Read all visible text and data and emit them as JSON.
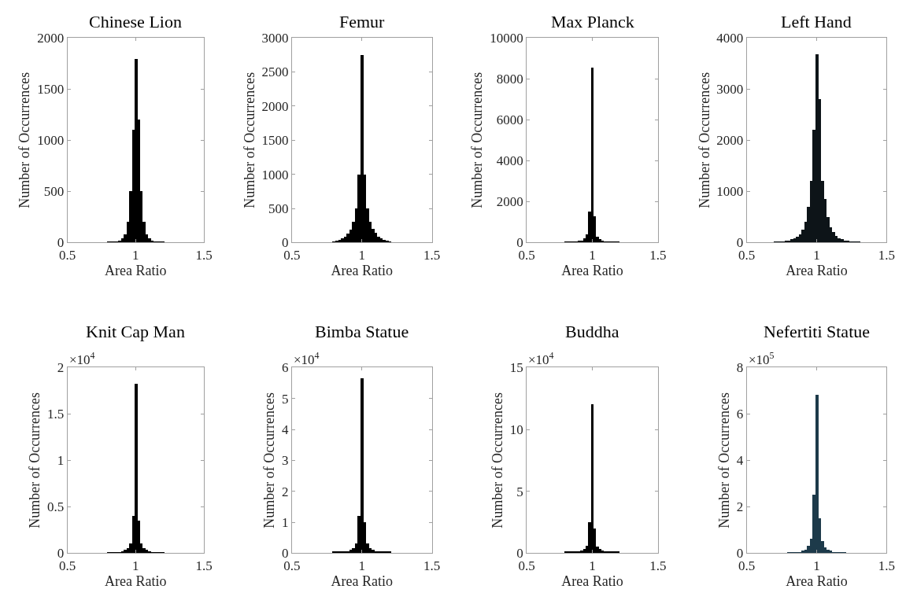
{
  "chart_data": [
    {
      "type": "histogram",
      "title": "Chinese Lion",
      "xlabel": "Area Ratio",
      "ylabel": "Number of Occurrences",
      "color": "#000000",
      "xlim": [
        0.5,
        1.5
      ],
      "xticks": [
        0.5,
        1,
        1.5
      ],
      "ylim": [
        0,
        2000
      ],
      "yticks": [
        0,
        500,
        1000,
        1500,
        2000
      ],
      "bins": [
        0.79,
        0.81,
        0.83,
        0.85,
        0.87,
        0.89,
        0.91,
        0.93,
        0.95,
        0.97,
        0.99,
        1.01,
        1.03,
        1.05,
        1.07,
        1.09,
        1.11,
        1.13,
        1.15,
        1.17,
        1.19,
        1.21
      ],
      "values": [
        10,
        10,
        10,
        10,
        20,
        40,
        80,
        200,
        500,
        1100,
        1790,
        1200,
        500,
        200,
        80,
        40,
        20,
        10,
        10,
        10,
        10
      ]
    },
    {
      "type": "histogram",
      "title": "Femur",
      "xlabel": "Area Ratio",
      "ylabel": "Number of Occurrences",
      "color": "#000000",
      "xlim": [
        0.5,
        1.5
      ],
      "xticks": [
        0.5,
        1,
        1.5
      ],
      "ylim": [
        0,
        3000
      ],
      "yticks": [
        0,
        500,
        1000,
        1500,
        2000,
        2500,
        3000
      ],
      "bins": [
        0.79,
        0.81,
        0.83,
        0.85,
        0.87,
        0.89,
        0.91,
        0.93,
        0.95,
        0.97,
        0.99,
        1.01,
        1.03,
        1.05,
        1.07,
        1.09,
        1.11,
        1.13,
        1.15,
        1.17,
        1.19,
        1.21
      ],
      "values": [
        20,
        30,
        40,
        60,
        90,
        130,
        190,
        300,
        500,
        1000,
        2750,
        1000,
        500,
        300,
        200,
        140,
        90,
        60,
        40,
        30,
        20
      ]
    },
    {
      "type": "histogram",
      "title": "Max Planck",
      "xlabel": "Area Ratio",
      "ylabel": "Number of Occurrences",
      "color": "#000000",
      "xlim": [
        0.5,
        1.5
      ],
      "xticks": [
        0.5,
        1,
        1.5
      ],
      "ylim": [
        0,
        10000
      ],
      "yticks": [
        0,
        2000,
        4000,
        6000,
        8000,
        10000
      ],
      "bins": [
        0.79,
        0.81,
        0.83,
        0.85,
        0.87,
        0.89,
        0.91,
        0.93,
        0.95,
        0.97,
        0.99,
        1.01,
        1.03,
        1.05,
        1.07,
        1.09,
        1.11,
        1.13,
        1.15,
        1.17,
        1.19,
        1.21
      ],
      "values": [
        50,
        50,
        50,
        50,
        50,
        100,
        100,
        200,
        400,
        1500,
        8550,
        1300,
        300,
        150,
        100,
        50,
        50,
        50,
        50,
        50,
        50
      ]
    },
    {
      "type": "histogram",
      "title": "Left Hand",
      "xlabel": "Area Ratio",
      "ylabel": "Number of Occurrences",
      "color": "#0d1418",
      "xlim": [
        0.5,
        1.5
      ],
      "xticks": [
        0.5,
        1,
        1.5
      ],
      "ylim": [
        0,
        4000
      ],
      "yticks": [
        0,
        1000,
        2000,
        3000,
        4000
      ],
      "bins": [
        0.69,
        0.71,
        0.73,
        0.75,
        0.77,
        0.79,
        0.81,
        0.83,
        0.85,
        0.87,
        0.89,
        0.91,
        0.93,
        0.95,
        0.97,
        0.99,
        1.01,
        1.03,
        1.05,
        1.07,
        1.09,
        1.11,
        1.13,
        1.15,
        1.17,
        1.19,
        1.21,
        1.23,
        1.25,
        1.27,
        1.29,
        1.31
      ],
      "values": [
        10,
        10,
        20,
        20,
        30,
        40,
        60,
        80,
        110,
        160,
        250,
        400,
        700,
        1200,
        2200,
        3680,
        2800,
        1200,
        850,
        500,
        300,
        200,
        130,
        90,
        60,
        40,
        30,
        20,
        20,
        10,
        10
      ]
    },
    {
      "type": "histogram",
      "title": "Knit Cap Man",
      "xlabel": "Area Ratio",
      "ylabel": "Number of Occurrences",
      "color": "#000000",
      "annotations": [
        "×10$^{4}$"
      ],
      "xlim": [
        0.5,
        1.5
      ],
      "xticks": [
        0.5,
        1,
        1.5
      ],
      "ylim": [
        0,
        2
      ],
      "yticks": [
        0,
        0.5,
        1,
        1.5,
        2
      ],
      "bins": [
        0.79,
        0.81,
        0.83,
        0.85,
        0.87,
        0.89,
        0.91,
        0.93,
        0.95,
        0.97,
        0.99,
        1.01,
        1.03,
        1.05,
        1.07,
        1.09,
        1.11,
        1.13,
        1.15,
        1.17,
        1.19,
        1.21
      ],
      "values": [
        0.01,
        0.01,
        0.01,
        0.01,
        0.01,
        0.02,
        0.03,
        0.05,
        0.1,
        0.4,
        1.82,
        0.35,
        0.1,
        0.05,
        0.03,
        0.02,
        0.01,
        0.01,
        0.01,
        0.01,
        0.01
      ]
    },
    {
      "type": "histogram",
      "title": "Bimba Statue",
      "xlabel": "Area Ratio",
      "ylabel": "Number of Occurrences",
      "color": "#000000",
      "annotations": [
        "×10$^{4}$"
      ],
      "xlim": [
        0.5,
        1.5
      ],
      "xticks": [
        0.5,
        1,
        1.5
      ],
      "ylim": [
        0,
        6
      ],
      "yticks": [
        0,
        1,
        2,
        3,
        4,
        5,
        6
      ],
      "bins": [
        0.79,
        0.81,
        0.83,
        0.85,
        0.87,
        0.89,
        0.91,
        0.93,
        0.95,
        0.97,
        0.99,
        1.01,
        1.03,
        1.05,
        1.07,
        1.09,
        1.11,
        1.13,
        1.15,
        1.17,
        1.19,
        1.21
      ],
      "values": [
        0.05,
        0.05,
        0.05,
        0.05,
        0.05,
        0.05,
        0.1,
        0.15,
        0.3,
        1.2,
        5.65,
        1.0,
        0.3,
        0.15,
        0.1,
        0.05,
        0.05,
        0.05,
        0.05,
        0.05,
        0.05
      ]
    },
    {
      "type": "histogram",
      "title": "Buddha",
      "xlabel": "Area Ratio",
      "ylabel": "Number of Occurrences",
      "color": "#000000",
      "annotations": [
        "×10$^{4}$"
      ],
      "xlim": [
        0.5,
        1.5
      ],
      "xticks": [
        0.5,
        1,
        1.5
      ],
      "ylim": [
        0,
        15
      ],
      "yticks": [
        0,
        5,
        10,
        15
      ],
      "bins": [
        0.79,
        0.81,
        0.83,
        0.85,
        0.87,
        0.89,
        0.91,
        0.93,
        0.95,
        0.97,
        0.99,
        1.01,
        1.03,
        1.05,
        1.07,
        1.09,
        1.11,
        1.13,
        1.15,
        1.17,
        1.19,
        1.21
      ],
      "values": [
        0.1,
        0.1,
        0.1,
        0.1,
        0.1,
        0.1,
        0.2,
        0.3,
        0.6,
        2.5,
        12,
        2,
        0.5,
        0.3,
        0.2,
        0.1,
        0.1,
        0.1,
        0.1,
        0.1,
        0.1
      ]
    },
    {
      "type": "histogram",
      "title": "Nefertiti Statue",
      "xlabel": "Area Ratio",
      "ylabel": "Number of Occurrences",
      "color": "#1d3a4a",
      "annotations": [
        "×10$^{5}$"
      ],
      "xlim": [
        0.5,
        1.5
      ],
      "xticks": [
        0.5,
        1,
        1.5
      ],
      "ylim": [
        0,
        8
      ],
      "yticks": [
        0,
        2,
        4,
        6,
        8
      ],
      "bins": [
        0.79,
        0.81,
        0.83,
        0.85,
        0.87,
        0.89,
        0.91,
        0.93,
        0.95,
        0.97,
        0.99,
        1.01,
        1.03,
        1.05,
        1.07,
        1.09,
        1.11,
        1.13,
        1.15,
        1.17,
        1.19,
        1.21
      ],
      "values": [
        0.05,
        0.05,
        0.05,
        0.05,
        0.05,
        0.1,
        0.15,
        0.3,
        0.6,
        2.5,
        6.8,
        1.5,
        0.5,
        0.25,
        0.15,
        0.1,
        0.05,
        0.05,
        0.05,
        0.05,
        0.05
      ]
    }
  ]
}
